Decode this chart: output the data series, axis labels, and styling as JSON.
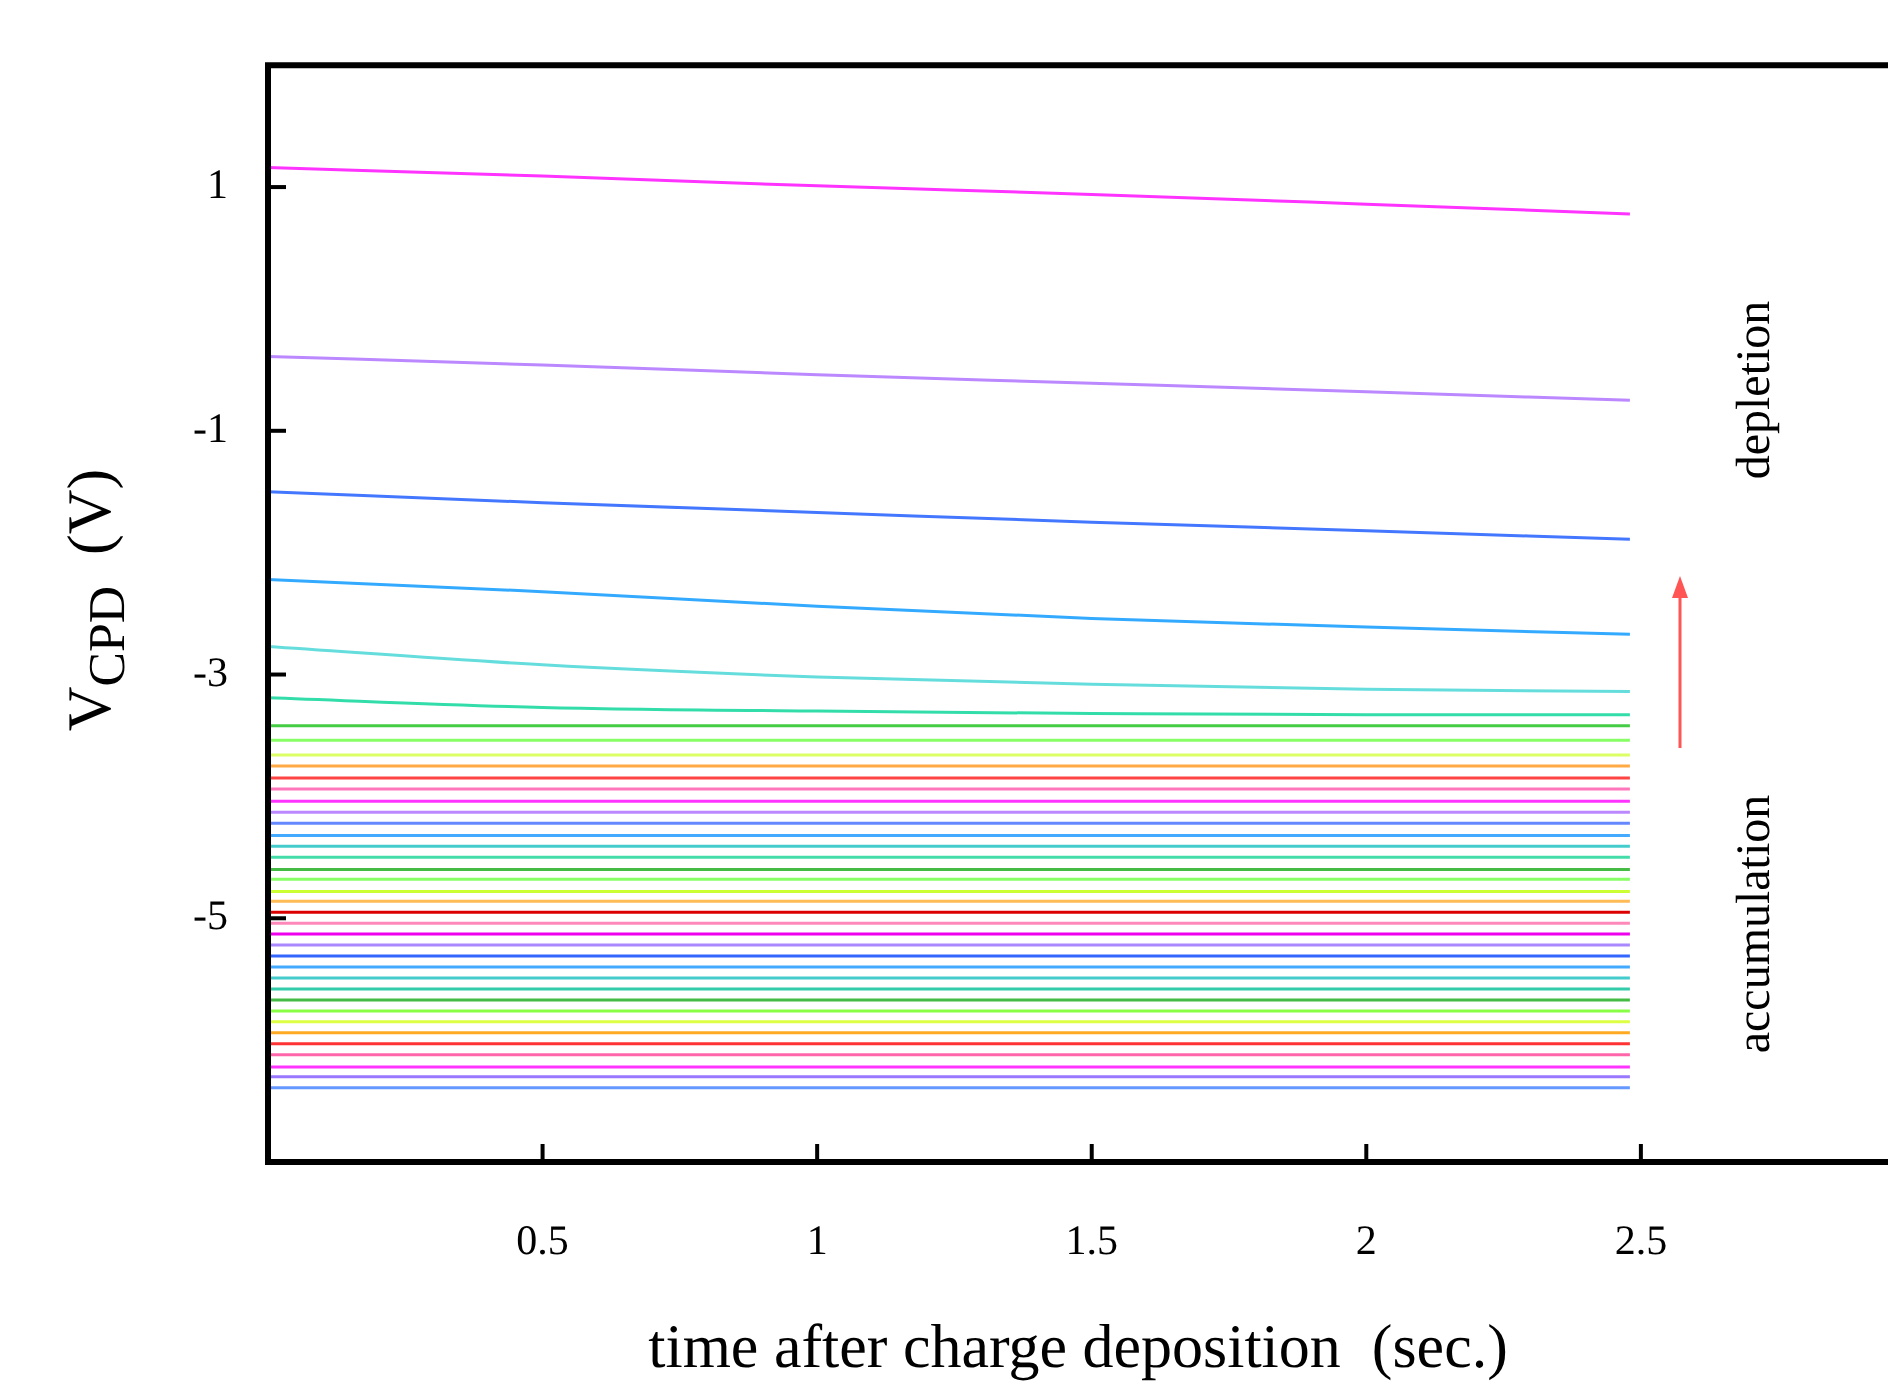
{
  "chart_data": {
    "type": "line",
    "xlabel": "time after charge deposition  (sec.)",
    "ylabel": "V$_{CPD}$  (V)",
    "annotations": [
      "depletion",
      "accumulation"
    ],
    "x": [
      0,
      0.5,
      1,
      1.5,
      2,
      2.48
    ],
    "xlim": [
      0,
      2.95
    ],
    "xticks": [
      0.5,
      1,
      1.5,
      2,
      2.5
    ],
    "ylim": [
      -7,
      2
    ],
    "yticks": [
      1,
      -1,
      -3,
      -5
    ],
    "legend": false,
    "marker": "none",
    "line_style": "solid",
    "series": [
      {
        "color": "#ff33ff",
        "values": [
          1.16,
          1.09,
          1.01,
          0.94,
          0.86,
          0.78
        ]
      },
      {
        "color": "#bb88ff",
        "values": [
          -0.39,
          -0.46,
          -0.54,
          -0.61,
          -0.68,
          -0.75
        ]
      },
      {
        "color": "#4477ff",
        "values": [
          -1.5,
          -1.59,
          -1.67,
          -1.75,
          -1.82,
          -1.89
        ]
      },
      {
        "color": "#33aaff",
        "values": [
          -2.22,
          -2.32,
          -2.44,
          -2.54,
          -2.61,
          -2.67
        ]
      },
      {
        "color": "#66dddd",
        "values": [
          -2.77,
          -2.92,
          -3.02,
          -3.08,
          -3.12,
          -3.14
        ]
      },
      {
        "color": "#33ddaa",
        "values": [
          -3.19,
          -3.27,
          -3.3,
          -3.32,
          -3.33,
          -3.33
        ]
      },
      {
        "color": "#44cc44",
        "values": [
          -3.42,
          -3.42,
          -3.42,
          -3.42,
          -3.42,
          -3.42
        ]
      },
      {
        "color": "#88ff66",
        "values": [
          -3.54,
          -3.54,
          -3.54,
          -3.54,
          -3.54,
          -3.54
        ]
      },
      {
        "color": "#ddff66",
        "values": [
          -3.66,
          -3.66,
          -3.66,
          -3.66,
          -3.66,
          -3.66
        ]
      },
      {
        "color": "#ffaa44",
        "values": [
          -3.75,
          -3.75,
          -3.75,
          -3.75,
          -3.75,
          -3.75
        ]
      },
      {
        "color": "#ff4444",
        "values": [
          -3.85,
          -3.85,
          -3.85,
          -3.85,
          -3.85,
          -3.85
        ]
      },
      {
        "color": "#ff77bb",
        "values": [
          -3.94,
          -3.94,
          -3.94,
          -3.94,
          -3.94,
          -3.94
        ]
      },
      {
        "color": "#ff33ff",
        "values": [
          -4.04,
          -4.04,
          -4.04,
          -4.04,
          -4.04,
          -4.04
        ]
      },
      {
        "color": "#bb88ff",
        "values": [
          -4.13,
          -4.13,
          -4.13,
          -4.13,
          -4.13,
          -4.13
        ]
      },
      {
        "color": "#6688ff",
        "values": [
          -4.22,
          -4.22,
          -4.22,
          -4.22,
          -4.22,
          -4.22
        ]
      },
      {
        "color": "#44aaff",
        "values": [
          -4.32,
          -4.32,
          -4.32,
          -4.32,
          -4.32,
          -4.32
        ]
      },
      {
        "color": "#44cccc",
        "values": [
          -4.41,
          -4.41,
          -4.41,
          -4.41,
          -4.41,
          -4.41
        ]
      },
      {
        "color": "#44ddaa",
        "values": [
          -4.5,
          -4.5,
          -4.5,
          -4.5,
          -4.5,
          -4.5
        ]
      },
      {
        "color": "#44bb44",
        "values": [
          -4.6,
          -4.6,
          -4.6,
          -4.6,
          -4.6,
          -4.6
        ]
      },
      {
        "color": "#88ff66",
        "values": [
          -4.68,
          -4.68,
          -4.68,
          -4.68,
          -4.68,
          -4.68
        ]
      },
      {
        "color": "#ccff33",
        "values": [
          -4.78,
          -4.78,
          -4.78,
          -4.78,
          -4.78,
          -4.78
        ]
      },
      {
        "color": "#ffbb55",
        "values": [
          -4.86,
          -4.86,
          -4.86,
          -4.86,
          -4.86,
          -4.86
        ]
      },
      {
        "color": "#dd0000",
        "values": [
          -4.95,
          -4.95,
          -4.95,
          -4.95,
          -4.95,
          -4.95
        ]
      },
      {
        "color": "#ff88bb",
        "values": [
          -5.04,
          -5.04,
          -5.04,
          -5.04,
          -5.04,
          -5.04
        ]
      },
      {
        "color": "#ee00ee",
        "values": [
          -5.13,
          -5.13,
          -5.13,
          -5.13,
          -5.13,
          -5.13
        ]
      },
      {
        "color": "#aa88ff",
        "values": [
          -5.22,
          -5.22,
          -5.22,
          -5.22,
          -5.22,
          -5.22
        ]
      },
      {
        "color": "#3366ff",
        "values": [
          -5.31,
          -5.31,
          -5.31,
          -5.31,
          -5.31,
          -5.31
        ]
      },
      {
        "color": "#44aaff",
        "values": [
          -5.4,
          -5.4,
          -5.4,
          -5.4,
          -5.4,
          -5.4
        ]
      },
      {
        "color": "#44cccc",
        "values": [
          -5.49,
          -5.49,
          -5.49,
          -5.49,
          -5.49,
          -5.49
        ]
      },
      {
        "color": "#33ccaa",
        "values": [
          -5.58,
          -5.58,
          -5.58,
          -5.58,
          -5.58,
          -5.58
        ]
      },
      {
        "color": "#44bb44",
        "values": [
          -5.67,
          -5.67,
          -5.67,
          -5.67,
          -5.67,
          -5.67
        ]
      },
      {
        "color": "#88ff44",
        "values": [
          -5.76,
          -5.76,
          -5.76,
          -5.76,
          -5.76,
          -5.76
        ]
      },
      {
        "color": "#ddff44",
        "values": [
          -5.85,
          -5.85,
          -5.85,
          -5.85,
          -5.85,
          -5.85
        ]
      },
      {
        "color": "#ffaa22",
        "values": [
          -5.94,
          -5.94,
          -5.94,
          -5.94,
          -5.94,
          -5.94
        ]
      },
      {
        "color": "#ff3333",
        "values": [
          -6.03,
          -6.03,
          -6.03,
          -6.03,
          -6.03,
          -6.03
        ]
      },
      {
        "color": "#ff66aa",
        "values": [
          -6.12,
          -6.12,
          -6.12,
          -6.12,
          -6.12,
          -6.12
        ]
      },
      {
        "color": "#ff33ff",
        "values": [
          -6.22,
          -6.22,
          -6.22,
          -6.22,
          -6.22,
          -6.22
        ]
      },
      {
        "color": "#9977ff",
        "values": [
          -6.3,
          -6.3,
          -6.3,
          -6.3,
          -6.3,
          -6.3
        ]
      },
      {
        "color": "#6699ff",
        "values": [
          -6.39,
          -6.39,
          -6.39,
          -6.39,
          -6.39,
          -6.39
        ]
      }
    ]
  }
}
